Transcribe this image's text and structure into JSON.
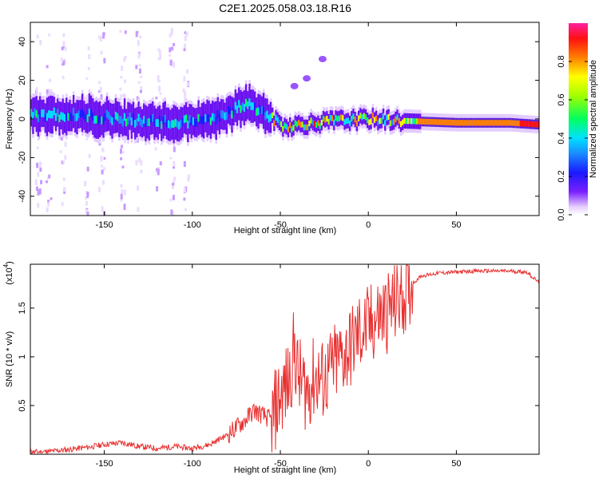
{
  "title": "C2E1.2025.058.03.18.R16",
  "chart_data": [
    {
      "type": "heatmap",
      "xlabel": "Height of straight line (km)",
      "ylabel": "Frequency (Hz)",
      "xlim": [
        -192,
        97
      ],
      "ylim": [
        -50,
        50
      ],
      "x_ticks": [
        -150,
        -100,
        -50,
        0,
        50
      ],
      "y_ticks": [
        -40,
        -20,
        0,
        20,
        40
      ],
      "colorbar": {
        "label": "Normalized spectral amplitude",
        "range": [
          0.0,
          1.0
        ],
        "ticks": [
          0.0,
          0.2,
          0.4,
          0.6,
          0.8
        ]
      },
      "ridge": [
        {
          "x": -192,
          "y": 2
        },
        {
          "x": -170,
          "y": 2
        },
        {
          "x": -150,
          "y": 1
        },
        {
          "x": -130,
          "y": -1
        },
        {
          "x": -110,
          "y": -2
        },
        {
          "x": -95,
          "y": -1
        },
        {
          "x": -80,
          "y": 3
        },
        {
          "x": -70,
          "y": 8
        },
        {
          "x": -62,
          "y": 4
        },
        {
          "x": -55,
          "y": 0
        },
        {
          "x": -48,
          "y": -4
        },
        {
          "x": -40,
          "y": -3
        },
        {
          "x": -20,
          "y": -1
        },
        {
          "x": 0,
          "y": 0
        },
        {
          "x": 20,
          "y": -1
        },
        {
          "x": 50,
          "y": -2
        },
        {
          "x": 80,
          "y": -2
        },
        {
          "x": 97,
          "y": -3
        }
      ],
      "weak_components": [
        {
          "x": -42,
          "y": 17
        },
        {
          "x": -35,
          "y": 21
        },
        {
          "x": -26,
          "y": 31
        }
      ]
    },
    {
      "type": "line",
      "xlabel": "Height of straight line (km)",
      "ylabel": "SNR (10 * v/v)",
      "multiplier": "(x10",
      "multiplier_exp": "4",
      "xlim": [
        -192,
        97
      ],
      "ylim": [
        0,
        1.95
      ],
      "x_ticks": [
        -150,
        -100,
        -50,
        0,
        50
      ],
      "y_ticks": [
        0.5,
        1.0,
        1.5
      ],
      "color": "#e83030",
      "series": [
        {
          "x": [
            -192,
            -180,
            -170,
            -160,
            -150,
            -140,
            -130,
            -120,
            -110,
            -100,
            -90,
            -80,
            -70,
            -65,
            -60,
            -55,
            -50,
            -45,
            -42,
            -40,
            -35,
            -30,
            -25,
            -20,
            -15,
            -10,
            -5,
            0,
            5,
            10,
            15,
            20,
            25,
            30,
            40,
            50,
            60,
            70,
            80,
            90,
            97
          ],
          "values": [
            0.02,
            0.03,
            0.05,
            0.07,
            0.1,
            0.12,
            0.08,
            0.06,
            0.08,
            0.06,
            0.1,
            0.2,
            0.35,
            0.45,
            0.4,
            0.35,
            0.6,
            0.75,
            1.1,
            0.8,
            0.65,
            0.8,
            0.75,
            0.9,
            1.0,
            1.1,
            1.25,
            1.3,
            1.4,
            1.45,
            1.55,
            1.65,
            1.75,
            1.83,
            1.86,
            1.87,
            1.88,
            1.88,
            1.88,
            1.87,
            1.76
          ]
        }
      ]
    }
  ]
}
